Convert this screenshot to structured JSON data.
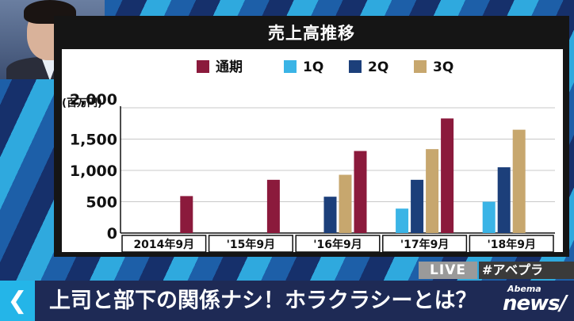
{
  "headline": "上司と部下の関係ナシ！ホラクラシーとは？",
  "live_label": "LIVE",
  "hashtag": "#アベプラ",
  "logo": {
    "small": "Abema",
    "big": "news/"
  },
  "back_icon": "chevron-left-icon",
  "chart_data": {
    "type": "bar",
    "title": "売上高推移",
    "ylabel": "(百万円)",
    "ylim": [
      0,
      2000
    ],
    "yticks": [
      "2,000",
      "1,500",
      "1,000",
      "500",
      "0"
    ],
    "ytick_values": [
      2000,
      1500,
      1000,
      500,
      0
    ],
    "categories": [
      "2014年9月",
      "'15年9月",
      "'16年9月",
      "'17年9月",
      "'18年9月"
    ],
    "legend_position": "top",
    "series": [
      {
        "name": "通期",
        "color": "#8b1a3c",
        "values": [
          590,
          850,
          1310,
          1830,
          null
        ]
      },
      {
        "name": "1Q",
        "color": "#3ab4e6",
        "values": [
          null,
          null,
          null,
          390,
          500
        ]
      },
      {
        "name": "2Q",
        "color": "#1c3f7a",
        "values": [
          null,
          null,
          580,
          850,
          1050
        ]
      },
      {
        "name": "3Q",
        "color": "#c7a76e",
        "values": [
          null,
          null,
          930,
          1340,
          1650
        ]
      }
    ]
  }
}
